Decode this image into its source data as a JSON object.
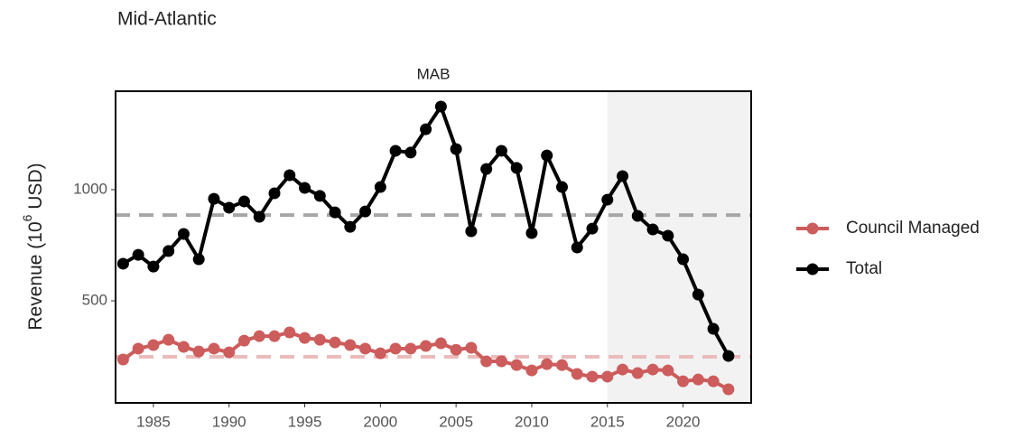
{
  "chart_data": {
    "type": "line",
    "title": "Mid-Atlantic",
    "facet": "MAB",
    "y_label": [
      "Revenue (10",
      "6",
      " USD)"
    ],
    "x": [
      1983,
      1984,
      1985,
      1986,
      1987,
      1988,
      1989,
      1990,
      1991,
      1992,
      1993,
      1994,
      1995,
      1996,
      1997,
      1998,
      1999,
      2000,
      2001,
      2002,
      2003,
      2004,
      2005,
      2006,
      2007,
      2008,
      2009,
      2010,
      2011,
      2012,
      2013,
      2014,
      2015,
      2016,
      2017,
      2018,
      2019,
      2020,
      2021,
      2022,
      2023
    ],
    "series": [
      {
        "name": "Council Managed",
        "color": "#cd5c5c",
        "mean": 248,
        "mean_color": "#ebbcbc",
        "values": [
          236,
          285,
          301,
          325,
          293,
          272,
          285,
          268,
          321,
          341,
          341,
          358,
          333,
          325,
          313,
          301,
          285,
          264,
          285,
          285,
          297,
          309,
          280,
          289,
          228,
          228,
          211,
          187,
          215,
          211,
          171,
          159,
          159,
          191,
          175,
          191,
          187,
          138,
          146,
          138,
          102
        ]
      },
      {
        "name": "Total",
        "color": "#000000",
        "mean": 886,
        "mean_color": "#a6a6a6",
        "values": [
          667,
          707,
          654,
          724,
          801,
          687,
          959,
          919,
          947,
          878,
          984,
          1065,
          1008,
          972,
          898,
          833,
          902,
          1012,
          1175,
          1167,
          1272,
          1374,
          1183,
          813,
          1093,
          1175,
          1098,
          805,
          1154,
          1012,
          740,
          825,
          955,
          1061,
          882,
          821,
          793,
          687,
          528,
          374,
          252
        ]
      }
    ],
    "shade_from": 2015,
    "shade_color": "#f2f2f2",
    "xlim": [
      1982.5,
      2024.5
    ],
    "xticks": [
      1985,
      1990,
      1995,
      2000,
      2005,
      2010,
      2015,
      2020
    ],
    "ylim": [
      41,
      1443
    ],
    "yticks": [
      500,
      1000
    ]
  }
}
